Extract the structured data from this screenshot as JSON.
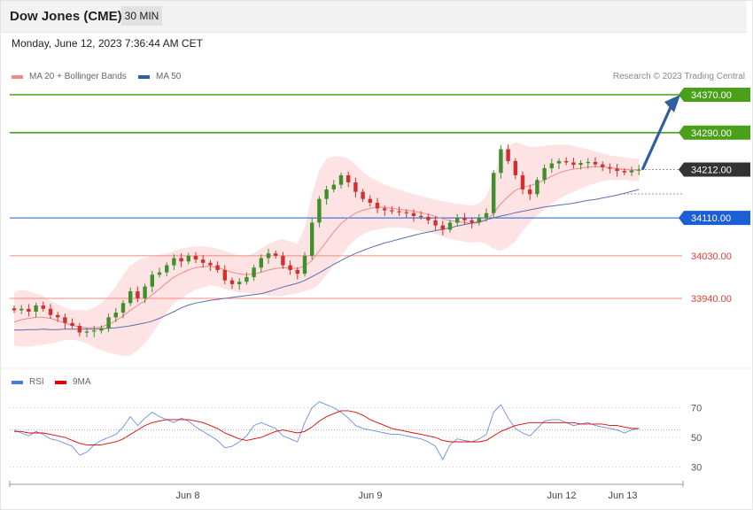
{
  "header": {
    "instrument": "Dow Jones (CME)",
    "timeframe": "30 MIN"
  },
  "datetime": "Monday, June 12, 2023 7:36:44 AM CET",
  "copyright": "Research © 2023 Trading Central",
  "legend_main": [
    {
      "label": "MA 20 + Bollinger Bands",
      "color": "#f28b82"
    },
    {
      "label": "MA 50",
      "color": "#2e5fa3"
    }
  ],
  "legend_rsi": [
    {
      "label": "RSI",
      "color": "#4a7bd8"
    },
    {
      "label": "9MA",
      "color": "#e00000"
    }
  ],
  "colors": {
    "up": "#3f8f2a",
    "down": "#d32f2f",
    "resistance": "#4aa01a",
    "pivot": "#1a5fd6",
    "support": "#f28b82",
    "arrow": "#2e5fa3",
    "band": "#fde0e0"
  },
  "chart_data": [
    {
      "type": "candlestick",
      "ylim": [
        33850,
        34400
      ],
      "x_ticks": [
        "Jun 8",
        "Jun 9",
        "Jun 12",
        "Jun 13"
      ],
      "levels": [
        {
          "label": "34370.00",
          "value": 34370,
          "kind": "resistance"
        },
        {
          "label": "34290.00",
          "value": 34290,
          "kind": "resistance"
        },
        {
          "label": "34212.00",
          "value": 34212,
          "kind": "last"
        },
        {
          "label": "34110.00",
          "value": 34110,
          "kind": "pivot"
        },
        {
          "label": "34030.00",
          "value": 34030,
          "kind": "support"
        },
        {
          "label": "33940.00",
          "value": 33940,
          "kind": "support"
        }
      ],
      "close": [
        33915,
        33918,
        33912,
        33925,
        33918,
        33905,
        33900,
        33888,
        33882,
        33868,
        33870,
        33872,
        33877,
        33900,
        33910,
        33930,
        33955,
        33940,
        33965,
        33990,
        33995,
        34010,
        34025,
        34018,
        34030,
        34022,
        34015,
        34010,
        34000,
        33978,
        33970,
        33975,
        33985,
        34005,
        34025,
        34035,
        34030,
        34010,
        34000,
        33992,
        34030,
        34100,
        34150,
        34170,
        34180,
        34200,
        34185,
        34165,
        34150,
        34142,
        34130,
        34126,
        34124,
        34122,
        34120,
        34114,
        34112,
        34105,
        34094,
        34085,
        34100,
        34110,
        34105,
        34100,
        34110,
        34120,
        34205,
        34255,
        34230,
        34200,
        34170,
        34160,
        34190,
        34215,
        34225,
        34230,
        34227,
        34222,
        34226,
        34228,
        34223,
        34217,
        34214,
        34209,
        34206,
        34210,
        34212
      ],
      "ma20": [
        33890,
        33895,
        33898,
        33900,
        33900,
        33898,
        33893,
        33888,
        33883,
        33880,
        33878,
        33878,
        33880,
        33885,
        33893,
        33903,
        33915,
        33925,
        33935,
        33948,
        33960,
        33973,
        33985,
        33993,
        34000,
        34005,
        34007,
        34008,
        34005,
        34000,
        33995,
        33992,
        33990,
        33992,
        33995,
        34000,
        34003,
        34005,
        34004,
        34003,
        34008,
        34020,
        34040,
        34060,
        34080,
        34098,
        34110,
        34120,
        34126,
        34130,
        34133,
        34132,
        34130,
        34128,
        34126,
        34124,
        34121,
        34118,
        34113,
        34108,
        34104,
        34102,
        34100,
        34098,
        34100,
        34105,
        34120,
        34140,
        34155,
        34168,
        34175,
        34178,
        34183,
        34190,
        34198,
        34205,
        34210,
        34213,
        34215,
        34217,
        34218,
        34218,
        34216,
        34214,
        34212,
        34211,
        34211
      ],
      "bb_upper": [
        33955,
        33958,
        33955,
        33950,
        33945,
        33935,
        33928,
        33920,
        33915,
        33915,
        33915,
        33920,
        33930,
        33945,
        33965,
        33990,
        34010,
        34020,
        34025,
        34030,
        34032,
        34035,
        34040,
        34045,
        34048,
        34050,
        34050,
        34048,
        34045,
        34040,
        34035,
        34030,
        34030,
        34035,
        34045,
        34055,
        34062,
        34065,
        34060,
        34055,
        34090,
        34160,
        34210,
        34235,
        34240,
        34240,
        34235,
        34222,
        34208,
        34196,
        34188,
        34180,
        34175,
        34170,
        34165,
        34160,
        34156,
        34152,
        34148,
        34145,
        34142,
        34140,
        34138,
        34136,
        34140,
        34155,
        34195,
        34240,
        34260,
        34270,
        34265,
        34260,
        34260,
        34262,
        34264,
        34265,
        34265,
        34262,
        34258,
        34255,
        34250,
        34246,
        34242,
        34240,
        34238,
        34236,
        34235
      ],
      "bb_lower": [
        33840,
        33838,
        33838,
        33840,
        33842,
        33845,
        33848,
        33852,
        33853,
        33850,
        33845,
        33838,
        33830,
        33825,
        33822,
        33818,
        33820,
        33830,
        33845,
        33865,
        33888,
        33910,
        33930,
        33940,
        33950,
        33958,
        33963,
        33968,
        33965,
        33960,
        33955,
        33953,
        33952,
        33950,
        33948,
        33946,
        33944,
        33945,
        33948,
        33951,
        33955,
        33960,
        33970,
        33990,
        34010,
        34030,
        34050,
        34065,
        34075,
        34082,
        34085,
        34088,
        34090,
        34090,
        34088,
        34085,
        34082,
        34080,
        34076,
        34070,
        34065,
        34062,
        34060,
        34058,
        34060,
        34055,
        34045,
        34040,
        34048,
        34060,
        34082,
        34100,
        34115,
        34128,
        34140,
        34150,
        34158,
        34165,
        34172,
        34178,
        34183,
        34187,
        34190,
        34190,
        34190,
        34188,
        34187
      ],
      "ma50": [
        33873,
        33873,
        33874,
        33874,
        33875,
        33874,
        33874,
        33875,
        33875,
        33875,
        33875,
        33875,
        33876,
        33877,
        33878,
        33880,
        33882,
        33885,
        33888,
        33892,
        33898,
        33905,
        33912,
        33920,
        33926,
        33930,
        33933,
        33936,
        33938,
        33940,
        33942,
        33944,
        33946,
        33948,
        33950,
        33954,
        33959,
        33964,
        33968,
        33972,
        33978,
        33986,
        33994,
        34003,
        34012,
        34020,
        34028,
        34035,
        34041,
        34047,
        34052,
        34057,
        34061,
        34065,
        34069,
        34073,
        34077,
        34080,
        34083,
        34086,
        34089,
        34093,
        34096,
        34099,
        34102,
        34106,
        34110,
        34114,
        34117,
        34121,
        34124,
        34127,
        34130,
        34133,
        34135,
        34137,
        34139,
        34141,
        34144,
        34147,
        34149,
        34152,
        34155,
        34158,
        34162,
        34166,
        34170
      ]
    },
    {
      "type": "line",
      "title": "RSI",
      "ylim": [
        25,
        75
      ],
      "y_ticks": [
        "70",
        "50",
        "30"
      ],
      "series": [
        {
          "name": "RSI",
          "values": [
            55,
            53,
            51,
            54,
            52,
            49,
            48,
            46,
            44,
            38,
            40,
            45,
            48,
            50,
            52,
            57,
            64,
            58,
            63,
            67,
            64,
            62,
            60,
            63,
            61,
            57,
            54,
            51,
            48,
            43,
            44,
            47,
            51,
            58,
            60,
            58,
            56,
            51,
            49,
            47,
            60,
            70,
            74,
            72,
            70,
            67,
            63,
            58,
            56,
            55,
            54,
            53,
            52,
            52,
            51,
            50,
            49,
            47,
            44,
            35,
            45,
            49,
            48,
            47,
            49,
            52,
            67,
            72,
            63,
            56,
            53,
            51,
            56,
            61,
            62,
            62,
            60,
            58,
            59,
            60,
            58,
            57,
            56,
            55,
            53,
            55,
            56
          ]
        },
        {
          "name": "9MA",
          "values": [
            54,
            54,
            53,
            53,
            53,
            52,
            51,
            50,
            48,
            46,
            45,
            45,
            45,
            46,
            47,
            49,
            52,
            55,
            58,
            60,
            61,
            62,
            62,
            62,
            62,
            61,
            60,
            58,
            56,
            53,
            51,
            49,
            48,
            49,
            50,
            52,
            54,
            55,
            54,
            53,
            54,
            57,
            61,
            64,
            66,
            68,
            68,
            67,
            65,
            62,
            60,
            58,
            56,
            55,
            54,
            53,
            52,
            51,
            50,
            48,
            47,
            47,
            47,
            47,
            47,
            48,
            51,
            54,
            56,
            58,
            59,
            60,
            60,
            60,
            60,
            60,
            60,
            60,
            59,
            59,
            59,
            59,
            58,
            58,
            57,
            56,
            56
          ]
        }
      ]
    }
  ]
}
